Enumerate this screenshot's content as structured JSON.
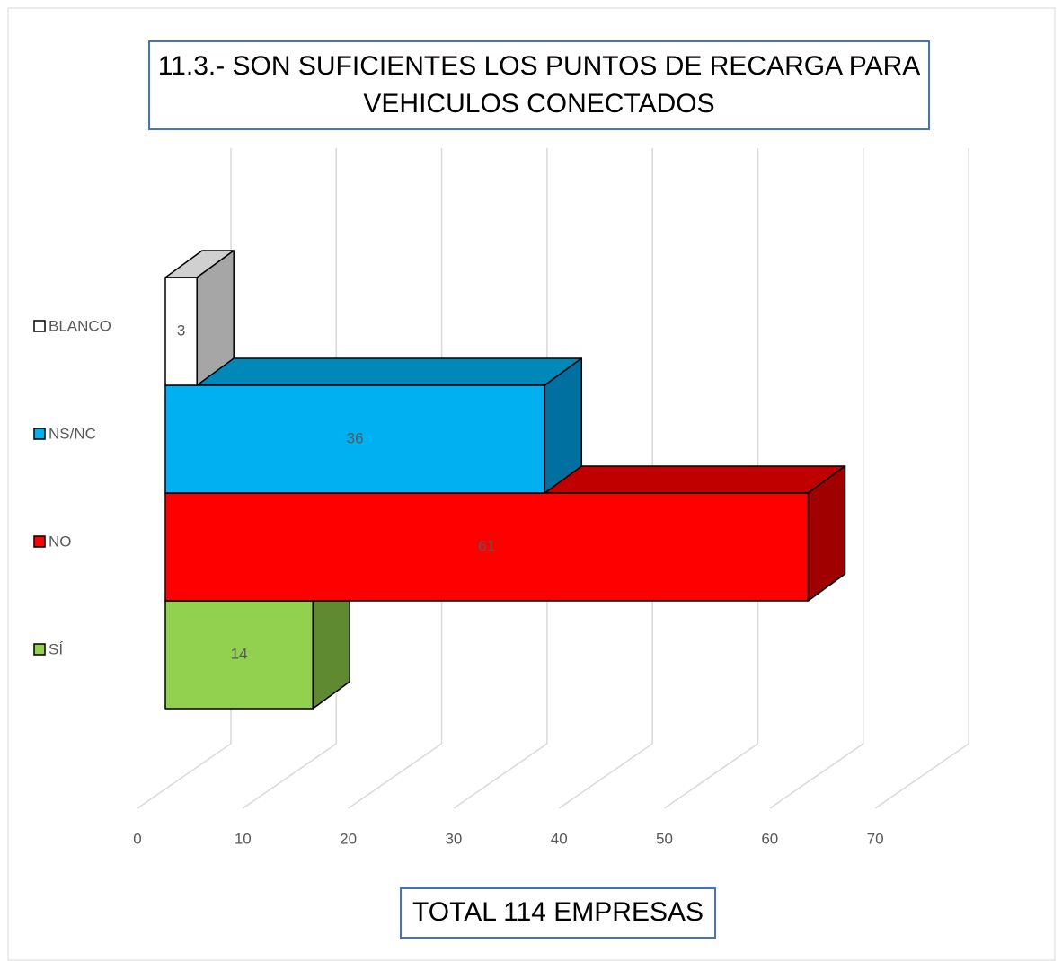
{
  "chart_data": {
    "type": "bar3d",
    "title": "11.3.- SON SUFICIENTES LOS PUNTOS DE RECARGA PARA VEHICULOS CONECTADOS",
    "annotation": "TOTAL 114 EMPRESAS",
    "categories": [
      "SÍ",
      "NO",
      "NS/NC",
      "BLANCO"
    ],
    "values": [
      14,
      61,
      36,
      3
    ],
    "colors": [
      "#92d050",
      "#ff0000",
      "#00b0f0",
      "#ffffff"
    ],
    "side_colors": [
      "#5f8a31",
      "#a00000",
      "#0070a0",
      "#a6a6a6"
    ],
    "top_colors": [
      "#7aae40",
      "#c00000",
      "#0088b8",
      "#d0d0d0"
    ],
    "xlim": [
      0,
      70
    ],
    "xticks": [
      0,
      10,
      20,
      30,
      40,
      50,
      60,
      70
    ],
    "grid": true
  }
}
